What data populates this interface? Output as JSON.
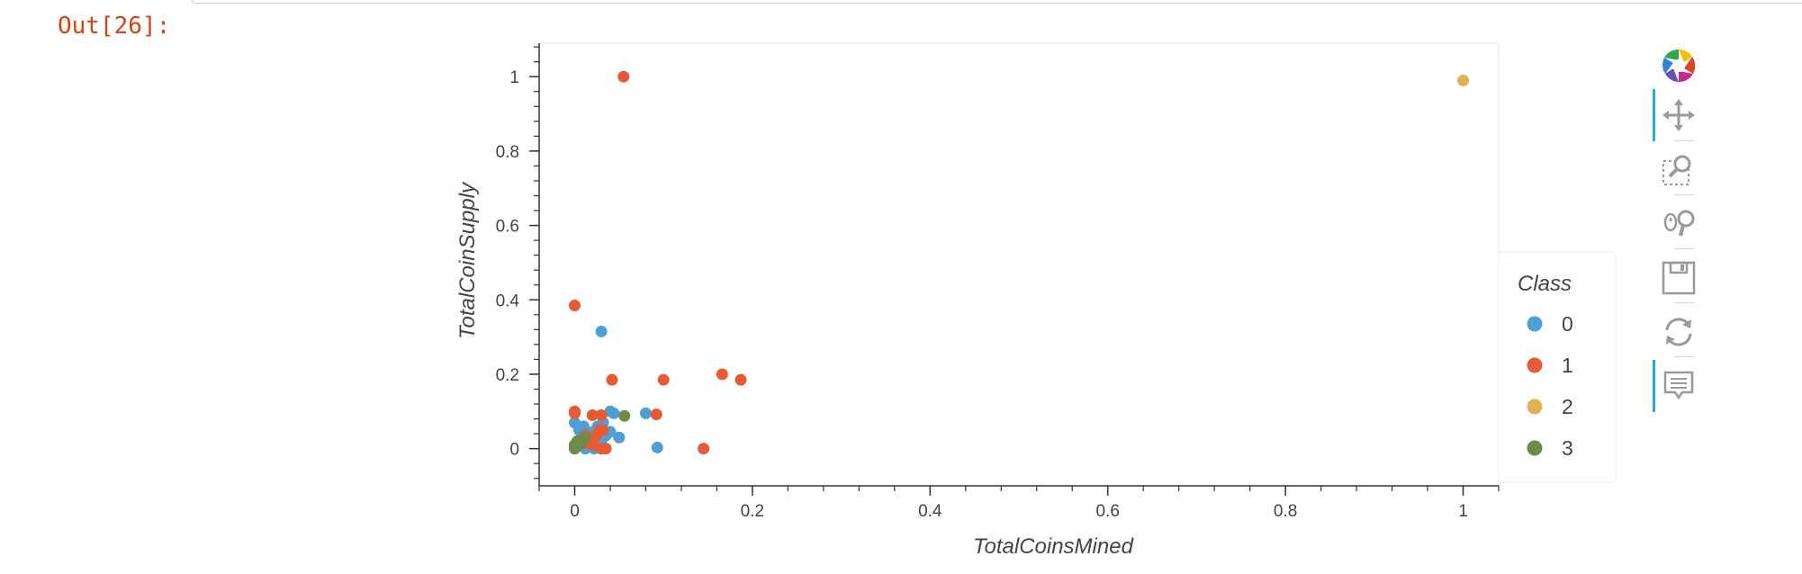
{
  "cell": {
    "prompt": "Out[26]:"
  },
  "toolbar": {
    "tools": [
      {
        "name": "bokeh-logo-icon",
        "active": false
      },
      {
        "name": "pan-icon",
        "active": true
      },
      {
        "name": "box-zoom-icon",
        "active": false
      },
      {
        "name": "wheel-zoom-icon",
        "active": false
      },
      {
        "name": "save-icon",
        "active": false
      },
      {
        "name": "reset-icon",
        "active": false
      },
      {
        "name": "hover-icon",
        "active": true
      }
    ]
  },
  "chart_data": {
    "type": "scatter",
    "xlabel": "TotalCoinsMined",
    "ylabel": "TotalCoinSupply",
    "xlim": [
      -0.04,
      1.04
    ],
    "ylim": [
      -0.1,
      1.09
    ],
    "xticks": [
      0,
      0.2,
      0.4,
      0.6,
      0.8,
      1
    ],
    "yticks": [
      0,
      0.2,
      0.4,
      0.6,
      0.8,
      1
    ],
    "grid": false,
    "legend": {
      "title": "Class",
      "position": "right"
    },
    "series": [
      {
        "name": "0",
        "color": "#4f9fd7",
        "points": [
          [
            0.0,
            0.0
          ],
          [
            0.002,
            0.005
          ],
          [
            0.004,
            0.01
          ],
          [
            0.006,
            0.015
          ],
          [
            0.008,
            0.02
          ],
          [
            0.01,
            0.025
          ],
          [
            0.012,
            0.03
          ],
          [
            0.014,
            0.035
          ],
          [
            0.016,
            0.04
          ],
          [
            0.02,
            0.045
          ],
          [
            0.005,
            0.05
          ],
          [
            0.01,
            0.06
          ],
          [
            0.0,
            0.07
          ],
          [
            0.025,
            0.03
          ],
          [
            0.03,
            0.02
          ],
          [
            0.035,
            0.035
          ],
          [
            0.04,
            0.045
          ],
          [
            0.028,
            0.01
          ],
          [
            0.018,
            0.005
          ],
          [
            0.022,
            0.0
          ],
          [
            0.05,
            0.03
          ],
          [
            0.04,
            0.1
          ],
          [
            0.03,
            0.315
          ],
          [
            0.08,
            0.095
          ],
          [
            0.093,
            0.003
          ],
          [
            0.012,
            0.0
          ],
          [
            0.008,
            0.045
          ],
          [
            0.026,
            0.06
          ],
          [
            0.032,
            0.07
          ],
          [
            0.044,
            0.095
          ]
        ]
      },
      {
        "name": "1",
        "color": "#e85a35",
        "points": [
          [
            0.055,
            1.0
          ],
          [
            0.0,
            0.385
          ],
          [
            0.0,
            0.1
          ],
          [
            0.0,
            0.095
          ],
          [
            0.042,
            0.185
          ],
          [
            0.1,
            0.185
          ],
          [
            0.166,
            0.2
          ],
          [
            0.187,
            0.185
          ],
          [
            0.092,
            0.092
          ],
          [
            0.02,
            0.09
          ],
          [
            0.03,
            0.09
          ],
          [
            0.032,
            0.05
          ],
          [
            0.03,
            0.0
          ],
          [
            0.035,
            0.0
          ],
          [
            0.145,
            0.0
          ],
          [
            0.015,
            0.02
          ],
          [
            0.018,
            0.025
          ],
          [
            0.022,
            0.03
          ],
          [
            0.026,
            0.04
          ],
          [
            0.01,
            0.015
          ],
          [
            0.005,
            0.01
          ],
          [
            0.0,
            0.005
          ],
          [
            0.012,
            0.035
          ],
          [
            0.02,
            0.01
          ],
          [
            0.028,
            0.05
          ]
        ]
      },
      {
        "name": "2",
        "color": "#e0b253",
        "points": [
          [
            1.0,
            0.99
          ]
        ]
      },
      {
        "name": "3",
        "color": "#6f8b4a",
        "points": [
          [
            0.056,
            0.088
          ],
          [
            0.0,
            0.0
          ],
          [
            0.0,
            0.01
          ],
          [
            0.003,
            0.02
          ],
          [
            0.006,
            0.012
          ],
          [
            0.012,
            0.03
          ]
        ]
      }
    ]
  }
}
